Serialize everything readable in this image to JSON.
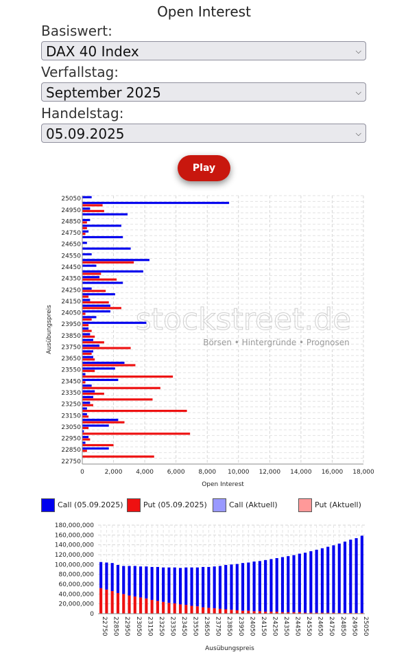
{
  "page": {
    "title": "Open Interest",
    "play_label": "Play"
  },
  "form": {
    "basiswert_label": "Basiswert:",
    "basiswert_value": "DAX 40 Index",
    "verfallstag_label": "Verfallstag:",
    "verfallstag_value": "September 2025",
    "handelstag_label": "Handelstag:",
    "handelstag_value": "05.09.2025"
  },
  "colors": {
    "call": "#0000ee",
    "put": "#ee1111",
    "call_current": "#9999ff",
    "put_current": "#ff9999",
    "play_button": "#c8170e"
  },
  "watermark": {
    "brand": "stockstreet.de",
    "tagline": "Börsen • Hintergründe • Prognosen"
  },
  "legend": [
    {
      "label": "Call (05.09.2025)",
      "color": "#0000ee"
    },
    {
      "label": "Put (05.09.2025)",
      "color": "#ee1111"
    },
    {
      "label": "Call (Aktuell)",
      "color": "#9999ff"
    },
    {
      "label": "Put (Aktuell)",
      "color": "#ff9999"
    }
  ],
  "chart_data": [
    {
      "type": "bar",
      "orientation": "horizontal",
      "ylabel": "Ausübungspreis",
      "xlabel": "Open Interest",
      "xlim": [
        0,
        18000
      ],
      "x_ticks": [
        "0",
        "2,000",
        "4,000",
        "6,000",
        "8,000",
        "10,000",
        "12,000",
        "14,000",
        "16,000",
        "18,000"
      ],
      "y_ticks": [
        "25050",
        "24950",
        "24850",
        "24750",
        "24650",
        "24550",
        "24450",
        "24350",
        "24250",
        "24150",
        "24050",
        "23950",
        "23850",
        "23750",
        "23650",
        "23550",
        "23450",
        "23350",
        "23250",
        "23150",
        "23050",
        "22950",
        "22850",
        "22750"
      ],
      "grid": true,
      "strikes": [
        25050,
        25000,
        24950,
        24900,
        24850,
        24800,
        24750,
        24700,
        24650,
        24600,
        24550,
        24500,
        24450,
        24400,
        24350,
        24300,
        24250,
        24200,
        24150,
        24100,
        24050,
        24000,
        23950,
        23900,
        23850,
        23800,
        23750,
        23700,
        23650,
        23600,
        23550,
        23500,
        23450,
        23400,
        23350,
        23300,
        23250,
        23200,
        23150,
        23100,
        23050,
        23000,
        22950,
        22900,
        22850,
        22800,
        22750
      ],
      "series": [
        {
          "name": "Call (05.09.2025)",
          "values": [
            600,
            9400,
            500,
            2900,
            500,
            2500,
            400,
            2600,
            300,
            3100,
            600,
            4300,
            900,
            3900,
            1100,
            2600,
            600,
            2100,
            500,
            1800,
            1800,
            900,
            4100,
            400,
            500,
            700,
            1100,
            700,
            700,
            2700,
            2100,
            200,
            2300,
            600,
            800,
            700,
            500,
            300,
            300,
            2300,
            1700,
            100,
            400,
            200,
            1700,
            0,
            0
          ]
        },
        {
          "name": "Put (05.09.2025)",
          "values": [
            0,
            1300,
            1400,
            0,
            300,
            300,
            200,
            0,
            0,
            0,
            0,
            3300,
            0,
            1200,
            2200,
            0,
            1500,
            400,
            1700,
            2500,
            200,
            600,
            400,
            600,
            800,
            1400,
            3100,
            600,
            800,
            3400,
            800,
            5800,
            200,
            5000,
            1400,
            4500,
            700,
            6700,
            400,
            2700,
            400,
            6900,
            500,
            2000,
            300,
            4600,
            0
          ]
        }
      ]
    },
    {
      "type": "bar",
      "stacked": true,
      "xlabel": "Ausübungspreis",
      "ylim": [
        0,
        180000000
      ],
      "y_ticks": [
        "0",
        "20,000,000",
        "40,000,000",
        "60,000,000",
        "80,000,000",
        "100,000,000",
        "120,000,000",
        "140,000,000",
        "160,000,000",
        "180,000,000"
      ],
      "x_ticks": [
        "22750",
        "22850",
        "22950",
        "23050",
        "23150",
        "23250",
        "23350",
        "23450",
        "23550",
        "23650",
        "23750",
        "23850",
        "23950",
        "24050",
        "24150",
        "24250",
        "24350",
        "24450",
        "24550",
        "24650",
        "24750",
        "24850",
        "24950",
        "25050"
      ],
      "grid": true,
      "series": [
        {
          "name": "Put (05.09.2025)",
          "values": [
            52000000,
            49000000,
            46000000,
            42000000,
            40000000,
            37000000,
            35000000,
            33000000,
            31000000,
            28000000,
            26000000,
            24000000,
            22000000,
            21000000,
            19000000,
            18000000,
            16000000,
            15000000,
            13000000,
            12000000,
            11000000,
            10000000,
            9000000,
            8000000,
            7000000,
            6000000,
            6000000,
            5000000,
            5000000,
            4000000,
            4000000,
            4000000,
            3000000,
            3000000,
            3000000,
            3000000,
            2000000,
            2000000,
            2000000,
            2000000,
            2000000,
            2000000,
            1500000,
            1500000,
            1500000,
            1500000,
            1500000
          ]
        },
        {
          "name": "Call (05.09.2025)",
          "values": [
            53000000,
            55000000,
            57000000,
            57000000,
            57000000,
            60000000,
            62000000,
            63000000,
            65000000,
            67000000,
            69000000,
            70000000,
            72000000,
            73000000,
            74000000,
            76000000,
            78000000,
            79000000,
            82000000,
            83000000,
            85000000,
            87000000,
            90000000,
            92000000,
            94000000,
            97000000,
            98000000,
            101000000,
            102000000,
            105000000,
            107000000,
            109000000,
            112000000,
            114000000,
            116000000,
            119000000,
            122000000,
            125000000,
            128000000,
            131000000,
            134000000,
            137000000,
            141000000,
            145000000,
            149000000,
            152000000,
            157000000
          ]
        }
      ]
    }
  ]
}
